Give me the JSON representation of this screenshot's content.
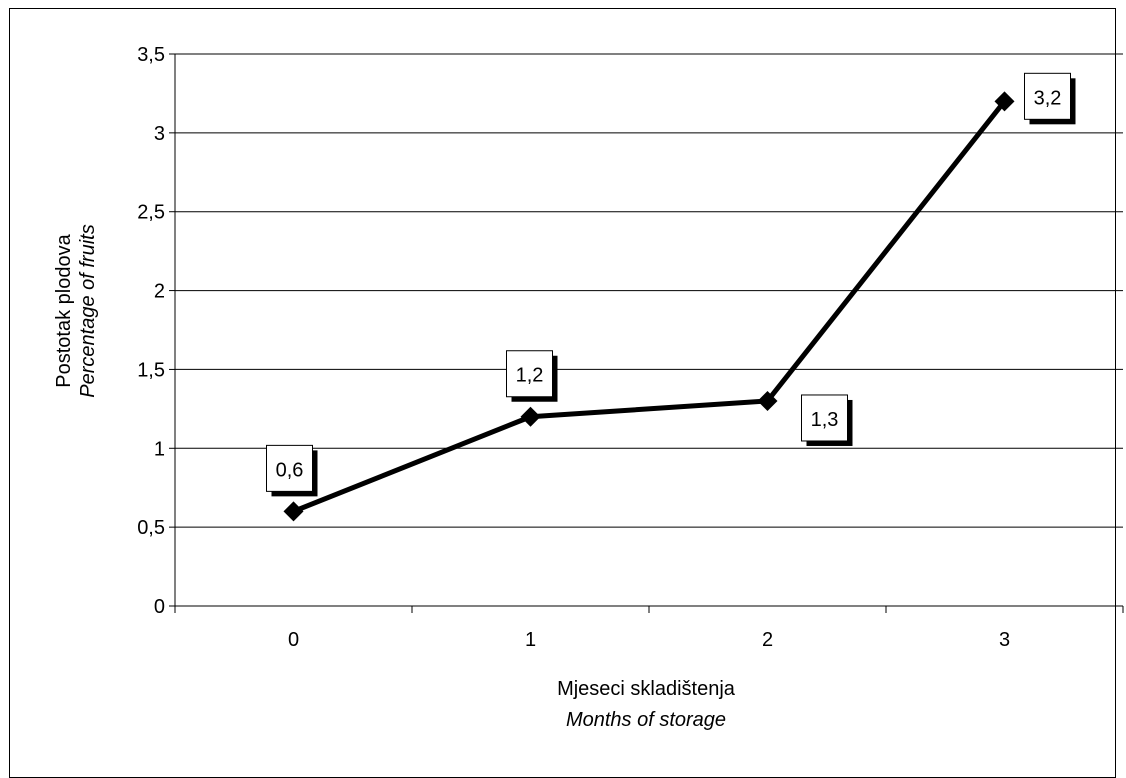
{
  "chart_data": {
    "type": "line",
    "title": "",
    "x": [
      0,
      1,
      2,
      3
    ],
    "categories": [
      "0",
      "1",
      "2",
      "3"
    ],
    "series": [
      {
        "values": [
          0.6,
          1.2,
          1.3,
          3.2
        ]
      }
    ],
    "data_labels": [
      "0,6",
      "1,2",
      "1,3",
      "3,2"
    ],
    "ylim": [
      0,
      3.5
    ],
    "yticks": [
      0,
      0.5,
      1,
      1.5,
      2,
      2.5,
      3,
      3.5
    ],
    "ytick_labels": [
      "0",
      "0,5",
      "1",
      "1,5",
      "2",
      "2,5",
      "3",
      "3,5"
    ],
    "ylabel_line1": "Postotak plodova",
    "ylabel_line2": "Percentage of fruits",
    "xlabel_line1": "Mjeseci skladištenja",
    "xlabel_line2": "Months of storage",
    "grid": "horizontal",
    "legend": "none",
    "line_color": "#000000",
    "grid_color": "#000000"
  }
}
